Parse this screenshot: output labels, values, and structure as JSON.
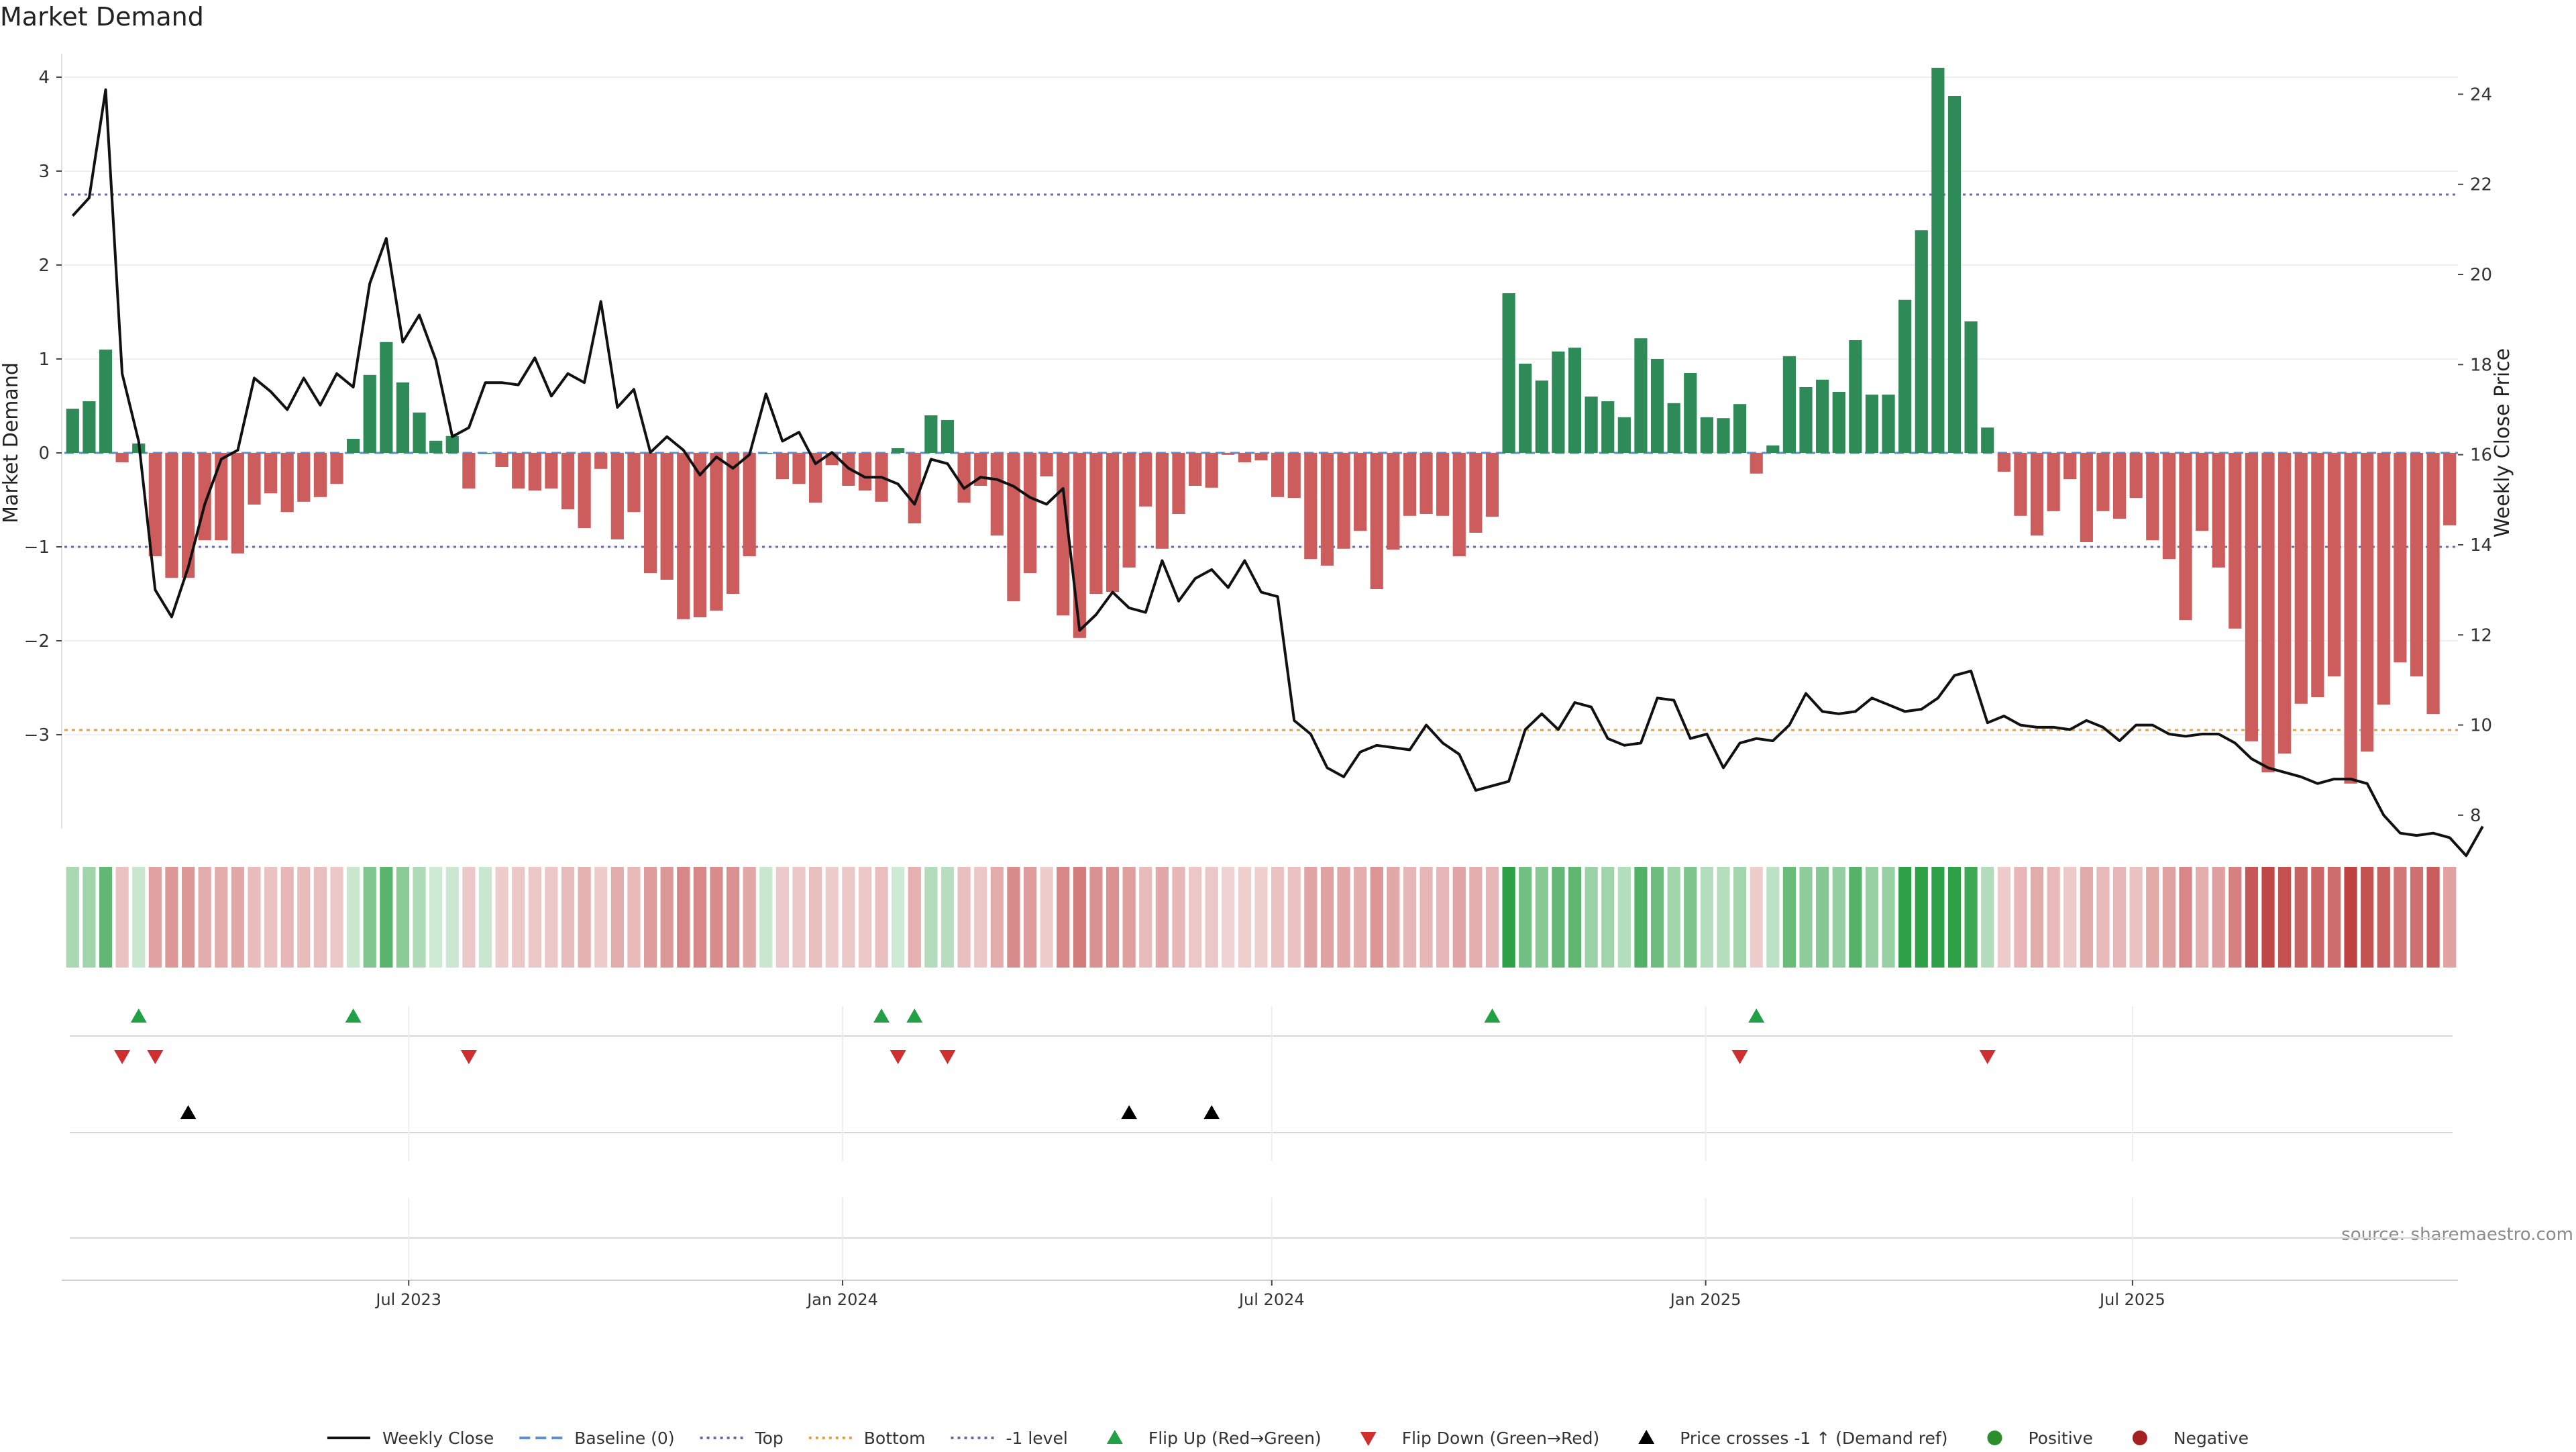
{
  "chart_data": {
    "type": "bar",
    "title": "Market Demand",
    "ylabel": "Market Demand",
    "y2label": "Weekly Close Price",
    "ylim": [
      -4.0,
      4.25
    ],
    "y2lim": [
      7.7,
      24.9
    ],
    "grid": true,
    "legend_position": "bottom",
    "source_note": "source: sharemaestro.com",
    "y_ticks": [
      -3,
      -2,
      -1,
      0,
      1,
      2,
      3,
      4
    ],
    "y_tick_labels": [
      "−3",
      "−2",
      "−1",
      "0",
      "1",
      "2",
      "3",
      "4"
    ],
    "y2_ticks": [
      8,
      10,
      12,
      14,
      16,
      18,
      20,
      22,
      24
    ],
    "y2_tick_labels": [
      "8",
      "10",
      "12",
      "14",
      "16",
      "18",
      "20",
      "22",
      "24"
    ],
    "x_start": "2023-02-05",
    "x_ticks": [
      {
        "date": "2023-07-01",
        "label": "Jul 2023"
      },
      {
        "date": "2024-01-01",
        "label": "Jan 2024"
      },
      {
        "date": "2024-07-01",
        "label": "Jul 2024"
      },
      {
        "date": "2025-01-01",
        "label": "Jan 2025"
      },
      {
        "date": "2025-07-01",
        "label": "Jul 2025"
      }
    ],
    "levels": {
      "top": 2.75,
      "bottom": -2.95,
      "minus_one": -1.0,
      "baseline": 0
    },
    "colors": {
      "positive": "#2e8b57",
      "negative": "#cd5c5c",
      "price_line": "#111111",
      "top_line": "#6a6aaa",
      "bottom_line": "#e5a14a",
      "minus_one_line": "#6a6aaa",
      "baseline_line": "#5b8fd6",
      "flip_up": "#22a046",
      "flip_down": "#d02f2f",
      "cross_marker": "#000000",
      "positive_dot": "#2a8f2a",
      "negative_dot": "#a52020"
    },
    "demand": [
      0.47,
      0.55,
      1.1,
      -0.1,
      0.1,
      -1.1,
      -1.33,
      -1.33,
      -0.93,
      -0.93,
      -1.07,
      -0.55,
      -0.43,
      -0.63,
      -0.52,
      -0.47,
      -0.33,
      0.15,
      0.83,
      1.18,
      0.75,
      0.43,
      0.13,
      0.18,
      -0.38,
      0.0,
      -0.15,
      -0.38,
      -0.4,
      -0.38,
      -0.6,
      -0.8,
      -0.17,
      -0.92,
      -0.63,
      -1.28,
      -1.35,
      -1.77,
      -1.75,
      -1.68,
      -1.5,
      -1.1,
      0.0,
      -0.28,
      -0.33,
      -0.53,
      -0.13,
      -0.35,
      -0.4,
      -0.52,
      0.05,
      -0.75,
      0.4,
      0.35,
      -0.53,
      -0.35,
      -0.88,
      -1.58,
      -1.28,
      -0.25,
      -1.73,
      -1.97,
      -1.5,
      -1.48,
      -1.22,
      -0.57,
      -1.02,
      -0.65,
      -0.35,
      -0.37,
      -0.02,
      -0.1,
      -0.08,
      -0.47,
      -0.48,
      -1.13,
      -1.2,
      -1.02,
      -0.83,
      -1.45,
      -1.03,
      -0.67,
      -0.65,
      -0.67,
      -1.1,
      -0.85,
      -0.68,
      1.7,
      0.95,
      0.77,
      1.08,
      1.12,
      0.6,
      0.55,
      0.38,
      1.22,
      1.0,
      0.53,
      0.85,
      0.38,
      0.37,
      0.52,
      -0.22,
      0.08,
      1.03,
      0.7,
      0.78,
      0.65,
      1.2,
      0.62,
      0.62,
      1.63,
      2.37,
      4.1,
      3.8,
      1.4,
      0.27,
      -0.2,
      -0.67,
      -0.88,
      -0.62,
      -0.28,
      -0.95,
      -0.62,
      -0.7,
      -0.48,
      -0.93,
      -1.13,
      -1.78,
      -0.83,
      -1.22,
      -1.87,
      -3.07,
      -3.4,
      -3.2,
      -2.67,
      -2.6,
      -2.38,
      -3.52,
      -3.18,
      -2.68,
      -2.23,
      -2.38,
      -2.78,
      -0.77
    ],
    "price": [
      21.3,
      21.7,
      24.1,
      17.8,
      16.3,
      13.0,
      12.4,
      13.5,
      14.9,
      15.9,
      16.1,
      17.7,
      17.4,
      17.0,
      17.7,
      17.1,
      17.8,
      17.5,
      19.8,
      20.8,
      18.5,
      19.1,
      18.1,
      16.4,
      16.6,
      17.6,
      17.6,
      17.55,
      18.15,
      17.3,
      17.8,
      17.6,
      19.4,
      17.05,
      17.45,
      16.05,
      16.4,
      16.1,
      15.55,
      15.95,
      15.7,
      16.0,
      17.35,
      16.3,
      16.5,
      15.8,
      16.05,
      15.7,
      15.5,
      15.5,
      15.35,
      14.9,
      15.9,
      15.8,
      15.25,
      15.5,
      15.45,
      15.3,
      15.05,
      14.9,
      15.25,
      12.1,
      12.45,
      12.95,
      12.6,
      12.5,
      13.65,
      12.75,
      13.25,
      13.45,
      13.05,
      13.65,
      12.95,
      12.85,
      10.1,
      9.8,
      9.05,
      8.85,
      9.4,
      9.55,
      9.5,
      9.45,
      10.0,
      9.6,
      9.35,
      8.55,
      8.65,
      8.75,
      9.9,
      10.25,
      9.9,
      10.5,
      10.4,
      9.7,
      9.55,
      9.6,
      10.6,
      10.55,
      9.7,
      9.8,
      9.05,
      9.6,
      9.7,
      9.65,
      10.0,
      10.7,
      10.3,
      10.25,
      10.3,
      10.6,
      10.45,
      10.3,
      10.35,
      10.6,
      11.1,
      11.2,
      10.05,
      10.2,
      10.0,
      9.95,
      9.95,
      9.9,
      10.1,
      9.95,
      9.65,
      10.0,
      10.0,
      9.8,
      9.75,
      9.8,
      9.8,
      9.6,
      9.25,
      9.05,
      8.95,
      8.85,
      8.7,
      8.8,
      8.8,
      8.7,
      8.0,
      7.6,
      7.55,
      7.6,
      7.5,
      7.1,
      7.75
    ],
    "strip_intensity": [
      0.47,
      0.55,
      1.1,
      0.3,
      0.2,
      0.6,
      0.7,
      0.7,
      0.5,
      0.5,
      0.55,
      0.35,
      0.3,
      0.4,
      0.35,
      0.33,
      0.25,
      0.2,
      0.83,
      1.18,
      0.75,
      0.43,
      0.15,
      0.18,
      0.25,
      0.2,
      0.2,
      0.25,
      0.25,
      0.25,
      0.35,
      0.45,
      0.2,
      0.5,
      0.38,
      0.65,
      0.7,
      0.85,
      0.85,
      0.8,
      0.75,
      0.55,
      0.2,
      0.22,
      0.25,
      0.33,
      0.2,
      0.25,
      0.25,
      0.33,
      0.15,
      0.45,
      0.4,
      0.35,
      0.33,
      0.25,
      0.5,
      0.8,
      0.65,
      0.2,
      0.85,
      0.95,
      0.75,
      0.75,
      0.62,
      0.35,
      0.55,
      0.4,
      0.25,
      0.25,
      0.15,
      0.18,
      0.18,
      0.3,
      0.3,
      0.58,
      0.6,
      0.55,
      0.48,
      0.72,
      0.55,
      0.4,
      0.4,
      0.4,
      0.58,
      0.48,
      0.4,
      1.7,
      0.95,
      0.77,
      1.08,
      1.12,
      0.6,
      0.55,
      0.38,
      1.22,
      1.0,
      0.53,
      0.85,
      0.38,
      0.37,
      0.52,
      0.2,
      0.3,
      1.03,
      0.7,
      0.78,
      0.65,
      1.2,
      0.62,
      0.62,
      1.63,
      2.37,
      4.1,
      3.8,
      1.4,
      0.4,
      0.2,
      0.4,
      0.5,
      0.38,
      0.22,
      0.52,
      0.38,
      0.4,
      0.3,
      0.52,
      0.6,
      0.85,
      0.48,
      0.62,
      0.9,
      1.3,
      1.45,
      1.35,
      1.2,
      1.15,
      1.1,
      1.5,
      1.35,
      1.2,
      1.0,
      1.05,
      1.25,
      0.6
    ],
    "flip_up_weeks": [
      4,
      17,
      49,
      51,
      86,
      102
    ],
    "flip_down_weeks": [
      3,
      5,
      24,
      50,
      53,
      101,
      116
    ],
    "price_cross_weeks": [
      7,
      64,
      69
    ],
    "legend": [
      {
        "key": "weekly-close",
        "label": "Weekly Close",
        "symbol": "solid-line",
        "color": "#111111"
      },
      {
        "key": "baseline",
        "label": "Baseline (0)",
        "symbol": "dashed-line",
        "color": "#5b8fd6"
      },
      {
        "key": "top",
        "label": "Top",
        "symbol": "dotted-line",
        "color": "#6a6aaa"
      },
      {
        "key": "bottom",
        "label": "Bottom",
        "symbol": "dotted-line",
        "color": "#e5a14a"
      },
      {
        "key": "minus-one",
        "label": "-1 level",
        "symbol": "dotted-line",
        "color": "#6a6aaa"
      },
      {
        "key": "flip-up",
        "label": "Flip Up (Red→Green)",
        "symbol": "triangle-up",
        "color": "#22a046"
      },
      {
        "key": "flip-down",
        "label": "Flip Down (Green→Red)",
        "symbol": "triangle-down",
        "color": "#d02f2f"
      },
      {
        "key": "price-cross",
        "label": "Price crosses -1 ↑ (Demand ref)",
        "symbol": "triangle-up",
        "color": "#000000"
      },
      {
        "key": "positive",
        "label": "Positive",
        "symbol": "dot",
        "color": "#2a8f2a"
      },
      {
        "key": "negative",
        "label": "Negative",
        "symbol": "dot",
        "color": "#a52020"
      }
    ]
  }
}
